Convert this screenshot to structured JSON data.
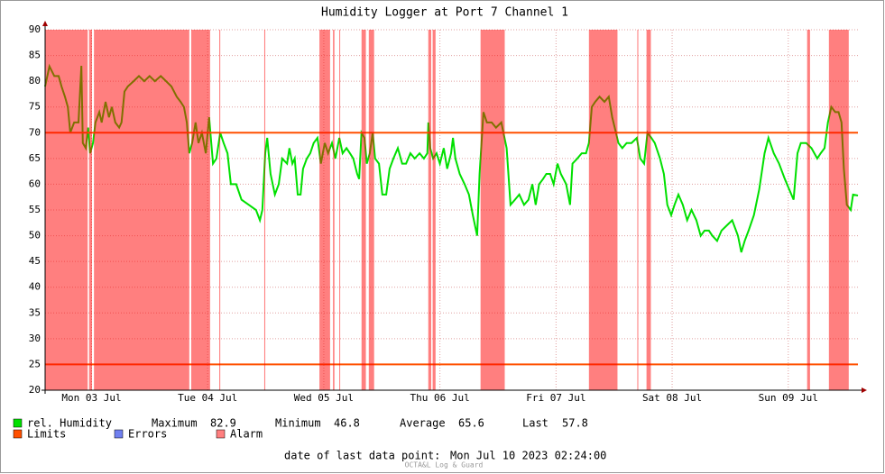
{
  "chart_data": {
    "type": "line",
    "title": "Humidity Logger at Port 7 Channel 1",
    "xlim": [
      2.4,
      170.4
    ],
    "xticks": [
      {
        "value": 12,
        "label": "Mon 03 Jul"
      },
      {
        "value": 36,
        "label": "Tue 04 Jul"
      },
      {
        "value": 60,
        "label": "Wed 05 Jul"
      },
      {
        "value": 84,
        "label": "Thu 06 Jul"
      },
      {
        "value": 108,
        "label": "Fri 07 Jul"
      },
      {
        "value": 132,
        "label": "Sat 08 Jul"
      },
      {
        "value": 156,
        "label": "Sun 09 Jul"
      }
    ],
    "ylim": [
      20,
      90
    ],
    "yticks": [
      20,
      25,
      30,
      35,
      40,
      45,
      50,
      55,
      60,
      65,
      70,
      75,
      80,
      85,
      90
    ],
    "grid": true,
    "x": [
      2.4,
      3.3,
      4.3,
      5.2,
      5.8,
      6.5,
      7.1,
      7.6,
      8.4,
      9.3,
      9.9,
      10.2,
      10.8,
      11.3,
      11.7,
      12.3,
      12.8,
      13.6,
      14.1,
      14.9,
      15.6,
      16.2,
      16.9,
      17.7,
      18.2,
      18.8,
      19.5,
      20.7,
      21.8,
      22.9,
      24.0,
      25.1,
      26.3,
      27.4,
      28.5,
      29.6,
      30.4,
      31.1,
      31.7,
      32.2,
      32.8,
      33.5,
      34.1,
      34.8,
      35.6,
      36.3,
      37.1,
      37.8,
      38.6,
      39.3,
      40.1,
      40.8,
      41.9,
      43.0,
      44.5,
      46.0,
      46.8,
      47.3,
      47.9,
      48.3,
      49.0,
      49.9,
      50.7,
      51.4,
      52.4,
      52.9,
      53.5,
      54.0,
      54.6,
      55.2,
      55.7,
      56.5,
      57.2,
      57.9,
      58.7,
      59.4,
      60.2,
      60.9,
      61.7,
      62.4,
      63.2,
      63.9,
      64.7,
      65.4,
      66.1,
      66.9,
      67.3,
      67.8,
      68.4,
      68.9,
      69.5,
      70.1,
      70.6,
      71.4,
      72.1,
      72.9,
      73.6,
      74.4,
      75.3,
      76.2,
      77.0,
      77.9,
      78.8,
      79.8,
      80.7,
      81.4,
      81.6,
      82.0,
      82.6,
      83.3,
      84.0,
      84.8,
      85.5,
      86.3,
      86.7,
      87.2,
      88.1,
      89.1,
      90.0,
      90.8,
      91.7,
      92.2,
      93.0,
      93.7,
      94.7,
      95.6,
      96.7,
      97.8,
      98.6,
      99.5,
      100.4,
      101.4,
      102.3,
      103.1,
      103.8,
      104.5,
      105.3,
      106.0,
      106.8,
      107.5,
      108.3,
      109.0,
      110.1,
      110.9,
      111.4,
      112.4,
      113.3,
      114.2,
      114.8,
      115.4,
      116.1,
      117.0,
      118.0,
      118.9,
      119.6,
      120.4,
      120.9,
      121.7,
      122.6,
      123.6,
      124.7,
      125.4,
      126.2,
      126.9,
      127.7,
      128.4,
      129.5,
      130.3,
      131.0,
      131.8,
      132.5,
      133.3,
      134.2,
      135.1,
      136.0,
      137.0,
      137.9,
      138.7,
      139.6,
      140.3,
      141.3,
      142.2,
      143.3,
      144.4,
      145.6,
      146.3,
      147.0,
      147.8,
      148.9,
      150.0,
      151.1,
      151.9,
      153.0,
      154.1,
      155.3,
      156.2,
      157.1,
      157.9,
      158.6,
      159.7,
      160.8,
      162.0,
      162.7,
      163.5,
      164.2,
      164.9,
      165.7,
      166.4,
      167.0,
      167.5,
      168.1,
      168.9,
      169.4,
      170.4
    ],
    "series": [
      {
        "name": "rel. Humidity",
        "color": "#00e000",
        "values": [
          79,
          82.9,
          81,
          81,
          79,
          77,
          75,
          70,
          72,
          72,
          83,
          68,
          67,
          71,
          66,
          68,
          72,
          74,
          72,
          76,
          73,
          75,
          72,
          71,
          72,
          78,
          79,
          80,
          81,
          80,
          81,
          80,
          81,
          80,
          79,
          77,
          76,
          75,
          72,
          66,
          68,
          72,
          68,
          70,
          66,
          73,
          64,
          65,
          70,
          68,
          66,
          60,
          60,
          57,
          56,
          55,
          53,
          55,
          66,
          69,
          62,
          58,
          60,
          65,
          64,
          67,
          64,
          65,
          58,
          58,
          63,
          65,
          66,
          68,
          69,
          64,
          68,
          66,
          68,
          65,
          69,
          66,
          67,
          66,
          65,
          62,
          61,
          70,
          69,
          64,
          66,
          70,
          65,
          64,
          58,
          58,
          63,
          65,
          67,
          64,
          64,
          66,
          65,
          66,
          65,
          66,
          72,
          67,
          65,
          66,
          64,
          67,
          63,
          66,
          69,
          65,
          62,
          60,
          58,
          54,
          50,
          62,
          74,
          72,
          72,
          71,
          72,
          67,
          56,
          57,
          58,
          56,
          57,
          60,
          56,
          60,
          61,
          62,
          62,
          60,
          64,
          62,
          60,
          56,
          64,
          65,
          66,
          66,
          68,
          75,
          76,
          77,
          76,
          77,
          73,
          70,
          68,
          67,
          68,
          68,
          69,
          65,
          64,
          70,
          69,
          68,
          65,
          62,
          56,
          54,
          56,
          58,
          56,
          53,
          55,
          53,
          50,
          51,
          51,
          50,
          49,
          51,
          52,
          53,
          50,
          46.8,
          49,
          51,
          54,
          59,
          66,
          69,
          66,
          64,
          61,
          59,
          57,
          66,
          68,
          68,
          67,
          65,
          66,
          67,
          72,
          75,
          74,
          74,
          72,
          63,
          56,
          55,
          58,
          57.8
        ]
      }
    ],
    "limits": {
      "name": "Limits",
      "color": "#ff5000",
      "values": [
        70,
        25
      ]
    },
    "errors": {
      "name": "Errors",
      "color": "#7080f0"
    },
    "alarm": {
      "name": "Alarm",
      "color": "#ff0000",
      "ranges": [
        [
          2.4,
          11.2
        ],
        [
          11.5,
          12.1
        ],
        [
          12.5,
          32.2
        ],
        [
          32.6,
          36.5
        ],
        [
          38.4,
          38.6
        ],
        [
          47.7,
          47.9
        ],
        [
          59.1,
          61.3
        ],
        [
          61.9,
          62.2
        ],
        [
          63.2,
          63.3
        ],
        [
          67.8,
          68.7
        ],
        [
          69.3,
          70.4
        ],
        [
          81.6,
          82.2
        ],
        [
          82.5,
          83.1
        ],
        [
          92.4,
          97.4
        ],
        [
          114.8,
          120.7
        ],
        [
          124.8,
          125.0
        ],
        [
          126.7,
          127.6
        ],
        [
          159.9,
          160.5
        ],
        [
          164.4,
          168.5
        ]
      ]
    },
    "stats": [
      {
        "label": "Maximum",
        "value": 82.9
      },
      {
        "label": "Minimum",
        "value": 46.8
      },
      {
        "label": "Average",
        "value": 65.6
      },
      {
        "label": "Last",
        "value": 57.8
      }
    ],
    "footer_label": "date of last data point:",
    "footer_value": "Mon Jul 10 2023 02:24:00",
    "watermark": "OCTA&L Log & Guard"
  }
}
